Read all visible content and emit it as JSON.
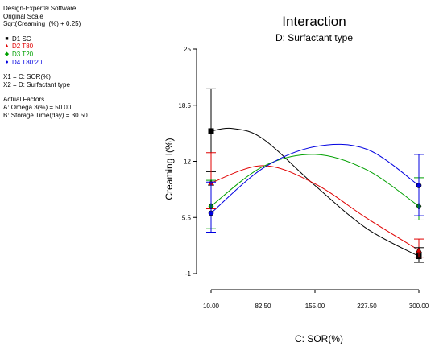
{
  "info": {
    "lines": [
      "Design-Expert® Software",
      "Original Scale",
      "Sqrt(Creaming I(%) + 0.25)"
    ],
    "x_factors": [
      "X1 = C: SOR(%)",
      "X2 = D: Surfactant type"
    ],
    "actual_factors_title": "Actual Factors",
    "actual_factors": [
      "A: Omega 3(%) = 50.00",
      "B: Storage Time(day) = 30.50"
    ]
  },
  "chart_data": {
    "type": "line",
    "title": "Interaction",
    "subtitle": "D: Surfactant type",
    "xlabel": "C: SOR(%)",
    "ylabel": "Creaming I(%)",
    "xlim": [
      10,
      300
    ],
    "ylim": [
      -1,
      25
    ],
    "x_ticks": [
      "10.00",
      "82.50",
      "155.00",
      "227.50",
      "300.00"
    ],
    "y_ticks": [
      "-1",
      "5.5",
      "12",
      "18.5",
      "25"
    ],
    "grid": false,
    "legend_position": "left",
    "series": [
      {
        "name": "D1 SC",
        "color": "#000000",
        "marker": "square",
        "curve": [
          [
            10,
            15.5
          ],
          [
            40,
            15.8
          ],
          [
            82.5,
            14.6
          ],
          [
            155,
            9.2
          ],
          [
            227.5,
            4.2
          ],
          [
            300,
            1.0
          ]
        ],
        "points": [
          {
            "x": 10,
            "y": 15.5,
            "err": [
              10.8,
              20.4
            ]
          },
          {
            "x": 300,
            "y": 1.0,
            "err": [
              0.3,
              2.0
            ]
          }
        ]
      },
      {
        "name": "D2 T80",
        "color": "#e00000",
        "marker": "triangle",
        "curve": [
          [
            10,
            9.5
          ],
          [
            82.5,
            11.5
          ],
          [
            155,
            9.4
          ],
          [
            227.5,
            5.4
          ],
          [
            300,
            1.7
          ]
        ],
        "points": [
          {
            "x": 10,
            "y": 9.5,
            "err": [
              6.5,
              13.0
            ]
          },
          {
            "x": 300,
            "y": 1.7,
            "err": [
              0.9,
              3.0
            ]
          }
        ]
      },
      {
        "name": "D3 T20",
        "color": "#00a000",
        "marker": "diamond",
        "curve": [
          [
            10,
            6.8
          ],
          [
            82.5,
            11.4
          ],
          [
            155,
            12.8
          ],
          [
            227.5,
            11.0
          ],
          [
            300,
            6.8
          ]
        ],
        "points": [
          {
            "x": 10,
            "y": 6.8,
            "err": [
              4.2,
              9.8
            ]
          },
          {
            "x": 300,
            "y": 6.8,
            "err": [
              5.2,
              10.1
            ]
          }
        ]
      },
      {
        "name": "D4 T80:20",
        "color": "#0000e0",
        "marker": "circle",
        "curve": [
          [
            10,
            6.0
          ],
          [
            82.5,
            11.2
          ],
          [
            155,
            13.7
          ],
          [
            227.5,
            13.4
          ],
          [
            300,
            9.2
          ]
        ],
        "points": [
          {
            "x": 10,
            "y": 6.0,
            "err": [
              3.8,
              9.6
            ]
          },
          {
            "x": 300,
            "y": 9.2,
            "err": [
              5.7,
              12.8
            ]
          }
        ]
      }
    ]
  }
}
